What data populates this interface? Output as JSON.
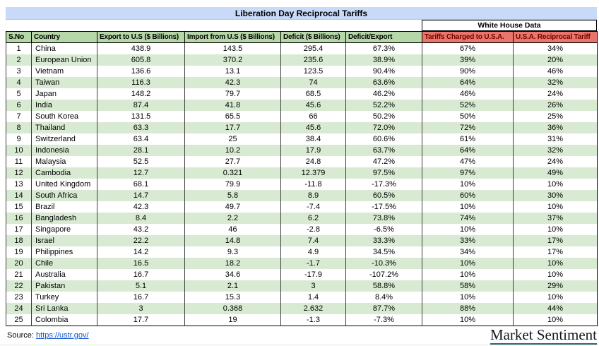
{
  "title": "Liberation Day Reciprocal Tariffs",
  "group_header": "White House Data",
  "chart_data": {
    "type": "table",
    "columns": [
      "S.No",
      "Country",
      "Export to U.S ($ Billions)",
      "Import from U.S ($ Billions)",
      "Deficit ($ Billions)",
      "Deficit/Export",
      "Tariffs Charged to U.S.A.",
      "U.S.A. Reciprocal Tariff"
    ],
    "rows": [
      [
        "1",
        "China",
        "438.9",
        "143.5",
        "295.4",
        "67.3%",
        "67%",
        "34%"
      ],
      [
        "2",
        "European Union",
        "605.8",
        "370.2",
        "235.6",
        "38.9%",
        "39%",
        "20%"
      ],
      [
        "3",
        "Vietnam",
        "136.6",
        "13.1",
        "123.5",
        "90.4%",
        "90%",
        "46%"
      ],
      [
        "4",
        "Taiwan",
        "116.3",
        "42.3",
        "74",
        "63.6%",
        "64%",
        "32%"
      ],
      [
        "5",
        "Japan",
        "148.2",
        "79.7",
        "68.5",
        "46.2%",
        "46%",
        "24%"
      ],
      [
        "6",
        "India",
        "87.4",
        "41.8",
        "45.6",
        "52.2%",
        "52%",
        "26%"
      ],
      [
        "7",
        "South Korea",
        "131.5",
        "65.5",
        "66",
        "50.2%",
        "50%",
        "25%"
      ],
      [
        "8",
        "Thailand",
        "63.3",
        "17.7",
        "45.6",
        "72.0%",
        "72%",
        "36%"
      ],
      [
        "9",
        "Switzerland",
        "63.4",
        "25",
        "38.4",
        "60.6%",
        "61%",
        "31%"
      ],
      [
        "10",
        "Indonesia",
        "28.1",
        "10.2",
        "17.9",
        "63.7%",
        "64%",
        "32%"
      ],
      [
        "11",
        "Malaysia",
        "52.5",
        "27.7",
        "24.8",
        "47.2%",
        "47%",
        "24%"
      ],
      [
        "12",
        "Cambodia",
        "12.7",
        "0.321",
        "12.379",
        "97.5%",
        "97%",
        "49%"
      ],
      [
        "13",
        "United Kingdom",
        "68.1",
        "79.9",
        "-11.8",
        "-17.3%",
        "10%",
        "10%"
      ],
      [
        "14",
        "South Africa",
        "14.7",
        "5.8",
        "8.9",
        "60.5%",
        "60%",
        "30%"
      ],
      [
        "15",
        "Brazil",
        "42.3",
        "49.7",
        "-7.4",
        "-17.5%",
        "10%",
        "10%"
      ],
      [
        "16",
        "Bangladesh",
        "8.4",
        "2.2",
        "6.2",
        "73.8%",
        "74%",
        "37%"
      ],
      [
        "17",
        "Singapore",
        "43.2",
        "46",
        "-2.8",
        "-6.5%",
        "10%",
        "10%"
      ],
      [
        "18",
        "Israel",
        "22.2",
        "14.8",
        "7.4",
        "33.3%",
        "33%",
        "17%"
      ],
      [
        "19",
        "Philippines",
        "14.2",
        "9.3",
        "4.9",
        "34.5%",
        "34%",
        "17%"
      ],
      [
        "20",
        "Chile",
        "16.5",
        "18.2",
        "-1.7",
        "-10.3%",
        "10%",
        "10%"
      ],
      [
        "21",
        "Australia",
        "16.7",
        "34.6",
        "-17.9",
        "-107.2%",
        "10%",
        "10%"
      ],
      [
        "22",
        "Pakistan",
        "5.1",
        "2.1",
        "3",
        "58.8%",
        "58%",
        "29%"
      ],
      [
        "23",
        "Turkey",
        "16.7",
        "15.3",
        "1.4",
        "8.4%",
        "10%",
        "10%"
      ],
      [
        "24",
        "Sri Lanka",
        "3",
        "0.368",
        "2.632",
        "87.7%",
        "88%",
        "44%"
      ],
      [
        "25",
        "Colombia",
        "17.7",
        "19",
        "-1.3",
        "-7.3%",
        "10%",
        "10%"
      ]
    ]
  },
  "footer": {
    "source_label": "Source:",
    "source_link_text": "https://ustr.gov/",
    "brand": "Market Sentiment"
  },
  "colors": {
    "title_bg": "#c9daf8",
    "header_green": "#b6d7a8",
    "header_red_bg": "#e8766b",
    "header_red_text": "#750000",
    "stripe_green": "#d9ead3",
    "link_blue": "#1155cc",
    "brand_underline": "#2a6b75"
  }
}
